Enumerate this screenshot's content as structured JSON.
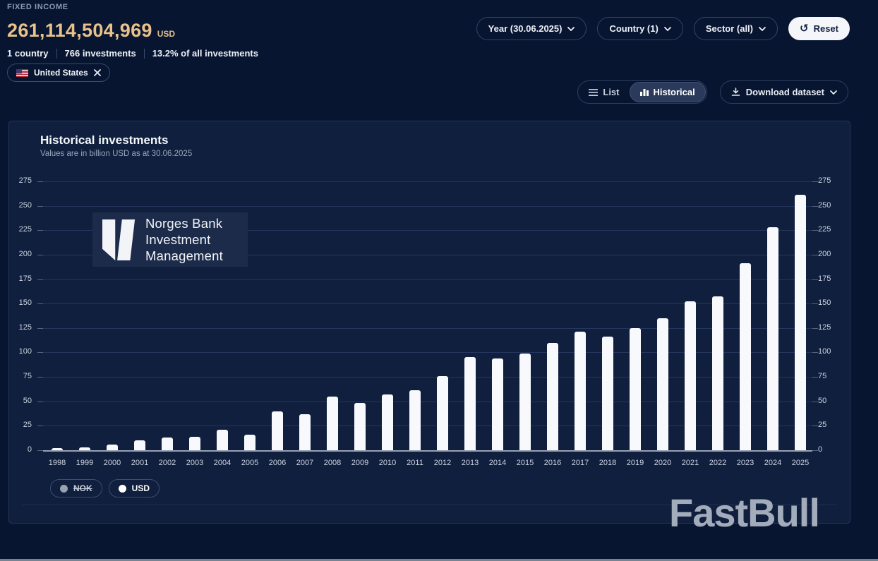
{
  "header": {
    "section_label": "FIXED INCOME",
    "total_value": "261,114,504,969",
    "currency": "USD",
    "stats": [
      "1 country",
      "766 investments",
      "13.2% of all investments"
    ],
    "chip": {
      "label": "United States"
    },
    "filters": [
      {
        "label": "Year (30.06.2025)"
      },
      {
        "label": "Country (1)"
      },
      {
        "label": "Sector (all)"
      }
    ],
    "reset_label": "Reset",
    "reset_icon": "↺",
    "view_toggle": [
      {
        "label": "List",
        "active": false
      },
      {
        "label": "Historical",
        "active": true
      }
    ],
    "download_label": "Download dataset"
  },
  "card": {
    "title": "Historical investments",
    "subtitle": "Values are in billion USD as at 30.06.2025",
    "logo_lines": [
      "Norges Bank",
      "Investment",
      "Management"
    ],
    "currency_toggle": [
      {
        "label": "NOK",
        "selected": false
      },
      {
        "label": "USD",
        "selected": true
      }
    ]
  },
  "watermark": "FastBull",
  "chart_data": {
    "type": "bar",
    "title": "Historical investments",
    "subtitle": "Values are in billion USD as at 30.06.2025",
    "unit": "billion USD",
    "categories": [
      "1998",
      "1999",
      "2000",
      "2001",
      "2002",
      "2003",
      "2004",
      "2005",
      "2006",
      "2007",
      "2008",
      "2009",
      "2010",
      "2011",
      "2012",
      "2013",
      "2014",
      "2015",
      "2016",
      "2017",
      "2018",
      "2019",
      "2020",
      "2021",
      "2022",
      "2023",
      "2024",
      "2025"
    ],
    "values": [
      2,
      3,
      6,
      10,
      13,
      14,
      21,
      16,
      40,
      37,
      55,
      48,
      57,
      61,
      76,
      95,
      94,
      99,
      110,
      121,
      116,
      125,
      135,
      152,
      157,
      191,
      228,
      261
    ],
    "ylim": [
      0,
      275
    ],
    "ytick_step": 25,
    "grid": true,
    "legend_position": "bottom-left",
    "axis_labels_both_sides": true,
    "bar_color": "#f7f9fc"
  },
  "colors": {
    "page_bg": "#081531",
    "card_bg": "#101f3e",
    "card_border": "#26365a",
    "accent_gold": "#e9c28b",
    "bar": "#f7f9fc",
    "gridline": "#24365e",
    "axis_line": "#97a1b2",
    "muted_text": "#8c99b1",
    "text": "#eef2f8"
  }
}
